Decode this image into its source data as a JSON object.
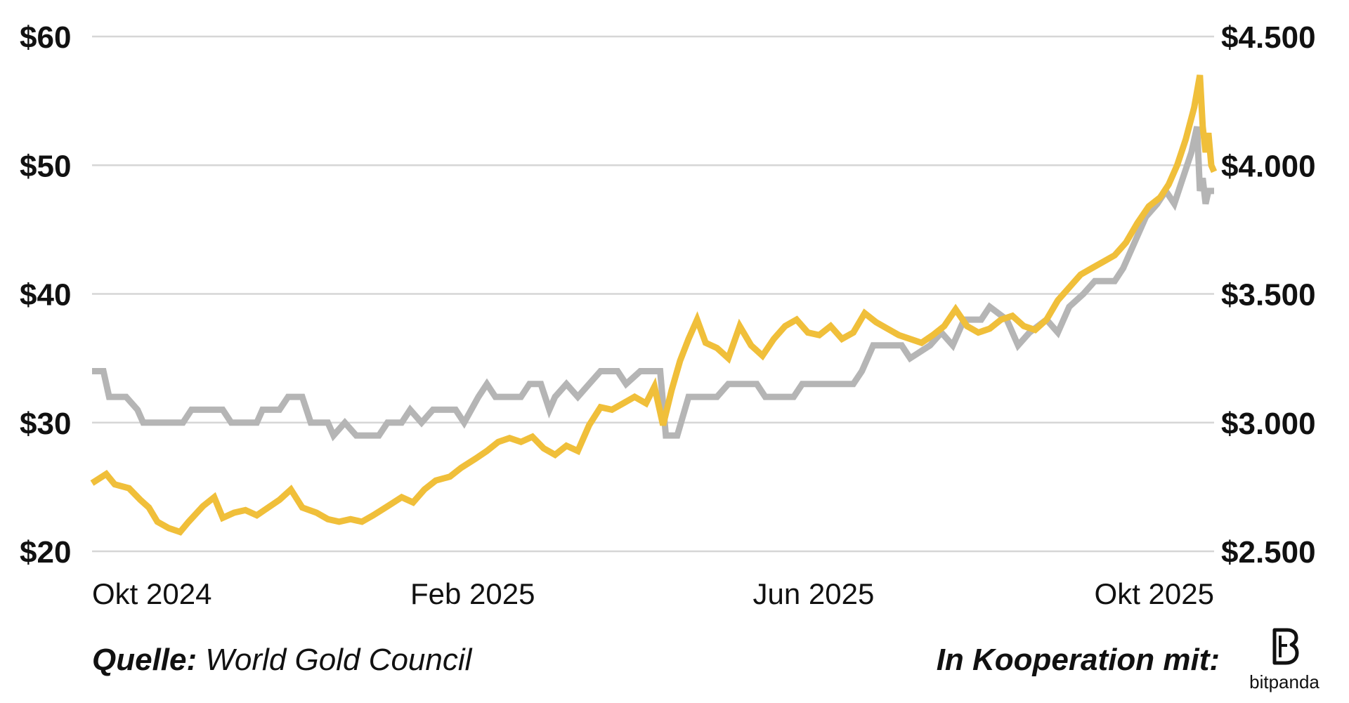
{
  "chart_data": {
    "type": "line",
    "x_tick_labels": [
      "Okt 2024",
      "Feb 2025",
      "Jun 2025",
      "Okt 2025"
    ],
    "x_tick_dates": [
      "2024-10-01",
      "2025-02-01",
      "2025-06-01",
      "2025-10-01"
    ],
    "x_range": [
      "2024-09-20",
      "2025-10-20"
    ],
    "y_left": {
      "min": 20,
      "max": 60,
      "ticks": [
        20,
        30,
        40,
        50,
        60
      ],
      "tick_labels": [
        "$20",
        "$30",
        "$40",
        "$50",
        "$60"
      ]
    },
    "y_right": {
      "min": 2500,
      "max": 4500,
      "ticks": [
        2500,
        3000,
        3500,
        4000,
        4500
      ],
      "tick_labels": [
        "$2.500",
        "$3.000",
        "$3.500",
        "$4.000",
        "$4.500"
      ]
    },
    "grid": "horizontal",
    "series": [
      {
        "axis": "left",
        "color": "#f0bf3a",
        "points": [
          [
            "2024-09-20",
            25.3
          ],
          [
            "2024-09-25",
            26.0
          ],
          [
            "2024-09-28",
            25.2
          ],
          [
            "2024-10-03",
            24.9
          ],
          [
            "2024-10-07",
            24.0
          ],
          [
            "2024-10-10",
            23.4
          ],
          [
            "2024-10-13",
            22.3
          ],
          [
            "2024-10-17",
            21.8
          ],
          [
            "2024-10-21",
            21.5
          ],
          [
            "2024-10-24",
            22.3
          ],
          [
            "2024-10-29",
            23.5
          ],
          [
            "2024-11-02",
            24.2
          ],
          [
            "2024-11-05",
            22.6
          ],
          [
            "2024-11-09",
            23.0
          ],
          [
            "2024-11-13",
            23.2
          ],
          [
            "2024-11-17",
            22.8
          ],
          [
            "2024-11-21",
            23.4
          ],
          [
            "2024-11-25",
            24.0
          ],
          [
            "2024-11-29",
            24.8
          ],
          [
            "2024-12-03",
            23.4
          ],
          [
            "2024-12-08",
            23.0
          ],
          [
            "2024-12-12",
            22.5
          ],
          [
            "2024-12-16",
            22.3
          ],
          [
            "2024-12-20",
            22.5
          ],
          [
            "2024-12-24",
            22.3
          ],
          [
            "2024-12-28",
            22.8
          ],
          [
            "2025-01-02",
            23.5
          ],
          [
            "2025-01-07",
            24.2
          ],
          [
            "2025-01-11",
            23.8
          ],
          [
            "2025-01-15",
            24.8
          ],
          [
            "2025-01-19",
            25.5
          ],
          [
            "2025-01-24",
            25.8
          ],
          [
            "2025-01-28",
            26.5
          ],
          [
            "2025-02-02",
            27.2
          ],
          [
            "2025-02-06",
            27.8
          ],
          [
            "2025-02-10",
            28.5
          ],
          [
            "2025-02-14",
            28.8
          ],
          [
            "2025-02-18",
            28.5
          ],
          [
            "2025-02-22",
            28.9
          ],
          [
            "2025-02-26",
            28.0
          ],
          [
            "2025-03-02",
            27.5
          ],
          [
            "2025-03-06",
            28.2
          ],
          [
            "2025-03-10",
            27.8
          ],
          [
            "2025-03-14",
            29.8
          ],
          [
            "2025-03-18",
            31.2
          ],
          [
            "2025-03-22",
            31.0
          ],
          [
            "2025-03-26",
            31.5
          ],
          [
            "2025-03-30",
            32.0
          ],
          [
            "2025-04-03",
            31.5
          ],
          [
            "2025-04-06",
            32.8
          ],
          [
            "2025-04-09",
            29.8
          ],
          [
            "2025-04-12",
            32.5
          ],
          [
            "2025-04-15",
            34.8
          ],
          [
            "2025-04-18",
            36.5
          ],
          [
            "2025-04-21",
            38.0
          ],
          [
            "2025-04-24",
            36.2
          ],
          [
            "2025-04-28",
            35.8
          ],
          [
            "2025-05-02",
            35.0
          ],
          [
            "2025-05-06",
            37.5
          ],
          [
            "2025-05-10",
            36.0
          ],
          [
            "2025-05-14",
            35.2
          ],
          [
            "2025-05-18",
            36.5
          ],
          [
            "2025-05-22",
            37.5
          ],
          [
            "2025-05-26",
            38.0
          ],
          [
            "2025-05-30",
            37.0
          ],
          [
            "2025-06-03",
            36.8
          ],
          [
            "2025-06-07",
            37.5
          ],
          [
            "2025-06-11",
            36.5
          ],
          [
            "2025-06-15",
            37.0
          ],
          [
            "2025-06-19",
            38.5
          ],
          [
            "2025-06-23",
            37.8
          ],
          [
            "2025-06-27",
            37.3
          ],
          [
            "2025-07-01",
            36.8
          ],
          [
            "2025-07-05",
            36.5
          ],
          [
            "2025-07-09",
            36.2
          ],
          [
            "2025-07-13",
            36.8
          ],
          [
            "2025-07-17",
            37.5
          ],
          [
            "2025-07-21",
            38.8
          ],
          [
            "2025-07-25",
            37.5
          ],
          [
            "2025-07-29",
            37.0
          ],
          [
            "2025-08-02",
            37.3
          ],
          [
            "2025-08-06",
            38.0
          ],
          [
            "2025-08-10",
            38.3
          ],
          [
            "2025-08-14",
            37.5
          ],
          [
            "2025-08-18",
            37.2
          ],
          [
            "2025-08-22",
            38.0
          ],
          [
            "2025-08-26",
            39.5
          ],
          [
            "2025-08-30",
            40.5
          ],
          [
            "2025-09-03",
            41.5
          ],
          [
            "2025-09-07",
            42.0
          ],
          [
            "2025-09-11",
            42.5
          ],
          [
            "2025-09-15",
            43.0
          ],
          [
            "2025-09-19",
            44.0
          ],
          [
            "2025-09-23",
            45.5
          ],
          [
            "2025-09-27",
            46.8
          ],
          [
            "2025-10-01",
            47.5
          ],
          [
            "2025-10-04",
            48.5
          ],
          [
            "2025-10-07",
            50.0
          ],
          [
            "2025-10-10",
            52.0
          ],
          [
            "2025-10-13",
            54.5
          ],
          [
            "2025-10-15",
            57.0
          ],
          [
            "2025-10-16",
            53.0
          ],
          [
            "2025-10-17",
            51.0
          ],
          [
            "2025-10-18",
            52.5
          ],
          [
            "2025-10-19",
            50.0
          ],
          [
            "2025-10-20",
            49.5
          ]
        ]
      },
      {
        "axis": "right",
        "color": "#b5b5b5",
        "points": [
          [
            "2024-09-20",
            3200
          ],
          [
            "2024-09-24",
            3200
          ],
          [
            "2024-09-26",
            3100
          ],
          [
            "2024-10-02",
            3100
          ],
          [
            "2024-10-06",
            3050
          ],
          [
            "2024-10-08",
            3000
          ],
          [
            "2024-10-22",
            3000
          ],
          [
            "2024-10-25",
            3050
          ],
          [
            "2024-11-05",
            3050
          ],
          [
            "2024-11-08",
            3000
          ],
          [
            "2024-11-17",
            3000
          ],
          [
            "2024-11-19",
            3050
          ],
          [
            "2024-11-25",
            3050
          ],
          [
            "2024-11-28",
            3100
          ],
          [
            "2024-12-03",
            3100
          ],
          [
            "2024-12-06",
            3000
          ],
          [
            "2024-12-12",
            3000
          ],
          [
            "2024-12-14",
            2950
          ],
          [
            "2024-12-18",
            3000
          ],
          [
            "2024-12-22",
            2950
          ],
          [
            "2024-12-30",
            2950
          ],
          [
            "2025-01-02",
            3000
          ],
          [
            "2025-01-07",
            3000
          ],
          [
            "2025-01-10",
            3050
          ],
          [
            "2025-01-14",
            3000
          ],
          [
            "2025-01-18",
            3050
          ],
          [
            "2025-01-26",
            3050
          ],
          [
            "2025-01-29",
            3000
          ],
          [
            "2025-02-03",
            3100
          ],
          [
            "2025-02-06",
            3150
          ],
          [
            "2025-02-09",
            3100
          ],
          [
            "2025-02-18",
            3100
          ],
          [
            "2025-02-21",
            3150
          ],
          [
            "2025-02-25",
            3150
          ],
          [
            "2025-02-28",
            3050
          ],
          [
            "2025-03-02",
            3100
          ],
          [
            "2025-03-06",
            3150
          ],
          [
            "2025-03-10",
            3100
          ],
          [
            "2025-03-14",
            3150
          ],
          [
            "2025-03-18",
            3200
          ],
          [
            "2025-03-24",
            3200
          ],
          [
            "2025-03-27",
            3150
          ],
          [
            "2025-04-01",
            3200
          ],
          [
            "2025-04-08",
            3200
          ],
          [
            "2025-04-10",
            2950
          ],
          [
            "2025-04-14",
            2950
          ],
          [
            "2025-04-18",
            3100
          ],
          [
            "2025-04-28",
            3100
          ],
          [
            "2025-05-02",
            3150
          ],
          [
            "2025-05-12",
            3150
          ],
          [
            "2025-05-15",
            3100
          ],
          [
            "2025-05-25",
            3100
          ],
          [
            "2025-05-28",
            3150
          ],
          [
            "2025-06-15",
            3150
          ],
          [
            "2025-06-18",
            3200
          ],
          [
            "2025-06-22",
            3300
          ],
          [
            "2025-07-02",
            3300
          ],
          [
            "2025-07-05",
            3250
          ],
          [
            "2025-07-12",
            3300
          ],
          [
            "2025-07-16",
            3350
          ],
          [
            "2025-07-20",
            3300
          ],
          [
            "2025-07-24",
            3400
          ],
          [
            "2025-07-30",
            3400
          ],
          [
            "2025-08-02",
            3450
          ],
          [
            "2025-08-08",
            3400
          ],
          [
            "2025-08-12",
            3300
          ],
          [
            "2025-08-16",
            3350
          ],
          [
            "2025-08-22",
            3400
          ],
          [
            "2025-08-26",
            3350
          ],
          [
            "2025-08-30",
            3450
          ],
          [
            "2025-09-04",
            3500
          ],
          [
            "2025-09-08",
            3550
          ],
          [
            "2025-09-15",
            3550
          ],
          [
            "2025-09-18",
            3600
          ],
          [
            "2025-09-22",
            3700
          ],
          [
            "2025-09-26",
            3800
          ],
          [
            "2025-09-30",
            3850
          ],
          [
            "2025-10-03",
            3900
          ],
          [
            "2025-10-06",
            3850
          ],
          [
            "2025-10-09",
            3950
          ],
          [
            "2025-10-12",
            4050
          ],
          [
            "2025-10-14",
            4150
          ],
          [
            "2025-10-15",
            3900
          ],
          [
            "2025-10-16",
            3950
          ],
          [
            "2025-10-17",
            3850
          ],
          [
            "2025-10-18",
            3900
          ],
          [
            "2025-10-20",
            3900
          ]
        ]
      }
    ]
  },
  "footer": {
    "source_label": "Quelle:",
    "source_value": "World Gold Council",
    "cooperation": "In Kooperation mit:",
    "brand_name": "bitpanda",
    "brand_icon": "bitpanda-logo-icon"
  }
}
